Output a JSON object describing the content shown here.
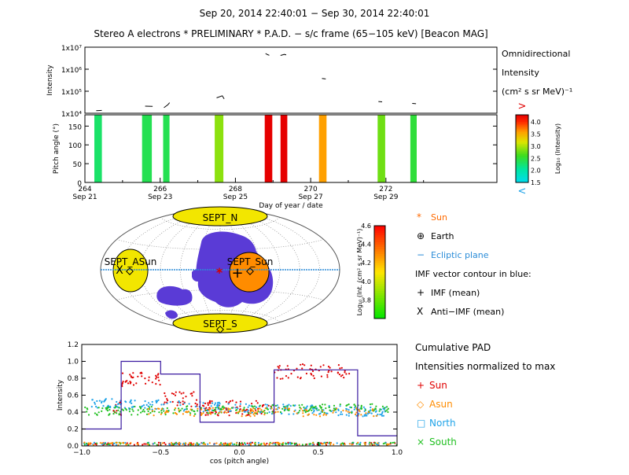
{
  "header": {
    "title_line1": "Sep 20, 2014 22:40:01 − Sep 30, 2014 22:40:01",
    "title_line2": "Stereo A electrons * PRELIMINARY * P.A.D. − s/c frame (65−105 keV)  [Beacon MAG]"
  },
  "chart_data": [
    {
      "id": "intensity-timeseries",
      "type": "scatter",
      "ylabel": "Intensity",
      "y_scale": "log",
      "y_ticks": [
        "1x10⁴",
        "1x10⁵",
        "1x10⁶",
        "1x10⁷"
      ],
      "y_tick_values": [
        10000,
        100000,
        1000000,
        10000000
      ],
      "xlim": [
        264,
        274.95
      ],
      "ylim_log10": [
        4,
        7
      ],
      "right_labels": [
        "Omnidirectional",
        "Intensity",
        "(cm² s sr MeV)⁻¹"
      ],
      "segments": [
        {
          "x": [
            264.3,
            264.45
          ],
          "y": [
            13000,
            13500
          ]
        },
        {
          "x": [
            265.6,
            265.8
          ],
          "y": [
            21000,
            20500
          ]
        },
        {
          "x": [
            266.1,
            266.2,
            266.25
          ],
          "y": [
            18000,
            24000,
            30000
          ]
        },
        {
          "x": [
            267.5,
            267.65,
            267.7
          ],
          "y": [
            50000,
            62000,
            45000
          ]
        },
        {
          "x": [
            268.8,
            268.85,
            268.9
          ],
          "y": [
            5200000,
            4600000,
            4300000
          ]
        },
        {
          "x": [
            269.2,
            269.3,
            269.35
          ],
          "y": [
            4200000,
            4700000,
            4500000
          ]
        },
        {
          "x": [
            270.3,
            270.4
          ],
          "y": [
            380000,
            360000
          ]
        },
        {
          "x": [
            271.8,
            271.9
          ],
          "y": [
            34000,
            33000
          ]
        },
        {
          "x": [
            272.7,
            272.8
          ],
          "y": [
            28000,
            27000
          ]
        }
      ]
    },
    {
      "id": "pitch-angle-spectrogram",
      "type": "heatmap",
      "ylabel": "Pitch angle (°)",
      "xlabel": "Day of year / date",
      "xlim": [
        264,
        274.95
      ],
      "ylim": [
        0,
        180
      ],
      "y_ticks": [
        "0",
        "50",
        "100",
        "150"
      ],
      "x_ticks": [
        {
          "doy": "264",
          "date": "Sep 21",
          "x": 264
        },
        {
          "doy": "266",
          "date": "Sep 23",
          "x": 266
        },
        {
          "doy": "268",
          "date": "Sep 25",
          "x": 268
        },
        {
          "doy": "270",
          "date": "Sep 27",
          "x": 270
        },
        {
          "doy": "272",
          "date": "Sep 29",
          "x": 272
        }
      ],
      "colorbar": {
        "label": "Log₁₀ (Intensity)",
        "min": 1.5,
        "max": 4.3,
        "ticks": [
          "1.5",
          "2.0",
          "2.5",
          "3.0",
          "3.5",
          "4.0"
        ]
      },
      "columns": [
        {
          "x0": 264.25,
          "x1": 264.45,
          "value": 2.3
        },
        {
          "x0": 265.52,
          "x1": 265.78,
          "value": 2.4
        },
        {
          "x0": 266.08,
          "x1": 266.25,
          "value": 2.4
        },
        {
          "x0": 267.45,
          "x1": 267.68,
          "value": 2.9
        },
        {
          "x0": 268.78,
          "x1": 268.98,
          "value": 4.3
        },
        {
          "x0": 269.2,
          "x1": 269.38,
          "value": 4.3
        },
        {
          "x0": 270.22,
          "x1": 270.42,
          "value": 3.6
        },
        {
          "x0": 271.78,
          "x1": 271.98,
          "value": 2.8
        },
        {
          "x0": 272.65,
          "x1": 272.82,
          "value": 2.5
        }
      ],
      "right_markers": {
        "high": ">",
        "low": "<"
      }
    },
    {
      "id": "pad-sky-map",
      "type": "heatmap",
      "projection": "aitoff",
      "colorbar": {
        "label": "Log₁₀ (Int. (cm² s sr MeV)⁻¹)",
        "min": 3.6,
        "max": 4.6,
        "ticks": [
          "3.8",
          "4.0",
          "4.2",
          "4.4",
          "4.6"
        ]
      },
      "fov_labels": [
        "SEPT_N",
        "SEPT_ASun",
        "SEPT_Sun",
        "SEPT_S"
      ],
      "legend": [
        {
          "symbol": "*",
          "text": "Sun",
          "color": "#ff6a00"
        },
        {
          "symbol": "⊕",
          "text": "Earth",
          "color": "#000000"
        },
        {
          "symbol": "−",
          "text": "Ecliptic plane",
          "color": "#2a8cd8"
        },
        {
          "symbol": "",
          "text": "IMF vector contour in blue:",
          "color": "#000000"
        },
        {
          "symbol": "+",
          "text": "IMF (mean)",
          "color": "#000000"
        },
        {
          "symbol": "X",
          "text": "Anti−IMF (mean)",
          "color": "#000000"
        }
      ]
    },
    {
      "id": "cumulative-pad",
      "type": "scatter",
      "xlabel": "cos (pitch angle)",
      "ylabel": "Intensity",
      "xlim": [
        -1,
        1
      ],
      "ylim": [
        0,
        1.2
      ],
      "x_ticks": [
        "−1.0",
        "−0.5",
        "0.0",
        "0.5",
        "1.0"
      ],
      "x_tick_values": [
        -1,
        -0.5,
        0,
        0.5,
        1
      ],
      "y_ticks": [
        "0.0",
        "0.2",
        "0.4",
        "0.6",
        "0.8",
        "1.0",
        "1.2"
      ],
      "y_tick_values": [
        0,
        0.2,
        0.4,
        0.6,
        0.8,
        1.0,
        1.2
      ],
      "legend_title": [
        "Cumulative PAD",
        "Intensities normalized to max"
      ],
      "series": [
        {
          "name": "Sun",
          "symbol": "+",
          "color": "#e00000"
        },
        {
          "name": "Asun",
          "symbol": "◇",
          "color": "#ff8c00"
        },
        {
          "name": "North",
          "symbol": "□",
          "color": "#1fa3e8"
        },
        {
          "name": "South",
          "symbol": "×",
          "color": "#22c022"
        }
      ],
      "step_line": {
        "color": "#3a1aa0",
        "x": [
          -1,
          -0.75,
          -0.75,
          -0.5,
          -0.5,
          -0.25,
          -0.25,
          0.22,
          0.22,
          0.5,
          0.5,
          0.75,
          0.75,
          1
        ],
        "y": [
          0.2,
          0.2,
          1.0,
          1.0,
          0.85,
          0.85,
          0.28,
          0.28,
          0.9,
          0.9,
          0.9,
          0.9,
          0.12,
          0.12
        ]
      }
    }
  ]
}
